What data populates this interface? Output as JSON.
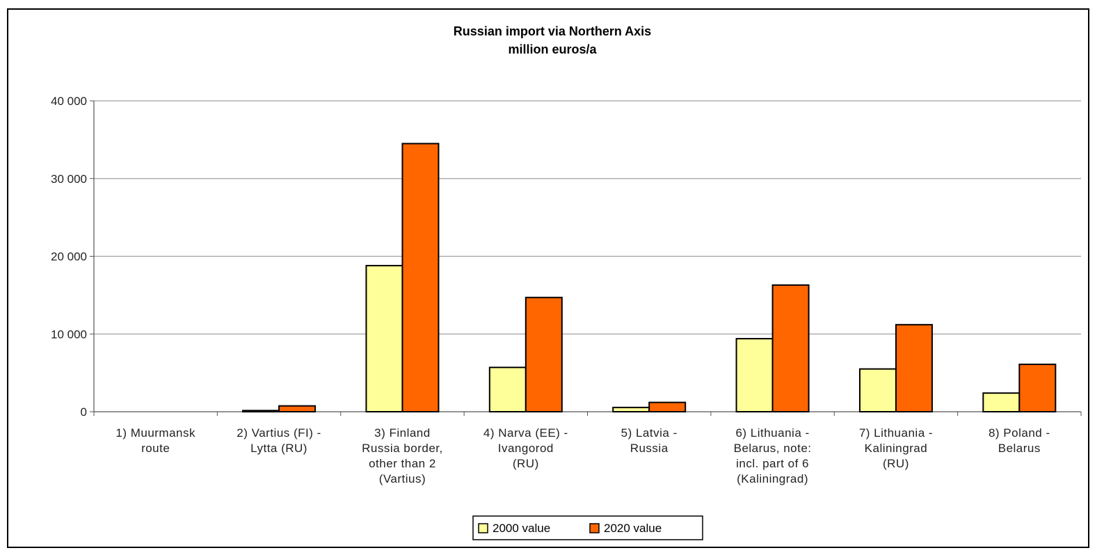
{
  "chart_data": {
    "type": "bar",
    "title": "Russian import via Northern Axis",
    "subtitle": "million euros/a",
    "xlabel": "",
    "ylabel": "",
    "ylim": [
      0,
      40000
    ],
    "yticks": [
      0,
      10000,
      20000,
      30000,
      40000
    ],
    "ytick_labels": [
      "0",
      "10 000",
      "20 000",
      "30 000",
      "40 000"
    ],
    "grid": true,
    "legend_position": "bottom",
    "categories": [
      [
        "1) Muurmansk",
        "route"
      ],
      [
        "2) Vartius (FI) -",
        "Lytta (RU)"
      ],
      [
        "3) Finland",
        "Russia border,",
        "other than 2",
        "(Vartius)"
      ],
      [
        "4) Narva (EE) -",
        "Ivangorod",
        "(RU)"
      ],
      [
        "5) Latvia -",
        "Russia"
      ],
      [
        "6) Lithuania -",
        "Belarus, note:",
        "incl. part of 6",
        "(Kaliningrad)"
      ],
      [
        "7) Lithuania -",
        "Kaliningrad",
        "(RU)"
      ],
      [
        "8) Poland -",
        "Belarus"
      ]
    ],
    "series": [
      {
        "name": "2000 value",
        "color": "#ffff99",
        "values": [
          0,
          150,
          18800,
          5700,
          550,
          9400,
          5500,
          2400
        ]
      },
      {
        "name": "2020 value",
        "color": "#ff6600",
        "values": [
          0,
          750,
          34500,
          14700,
          1200,
          16300,
          11200,
          6100
        ]
      }
    ]
  }
}
